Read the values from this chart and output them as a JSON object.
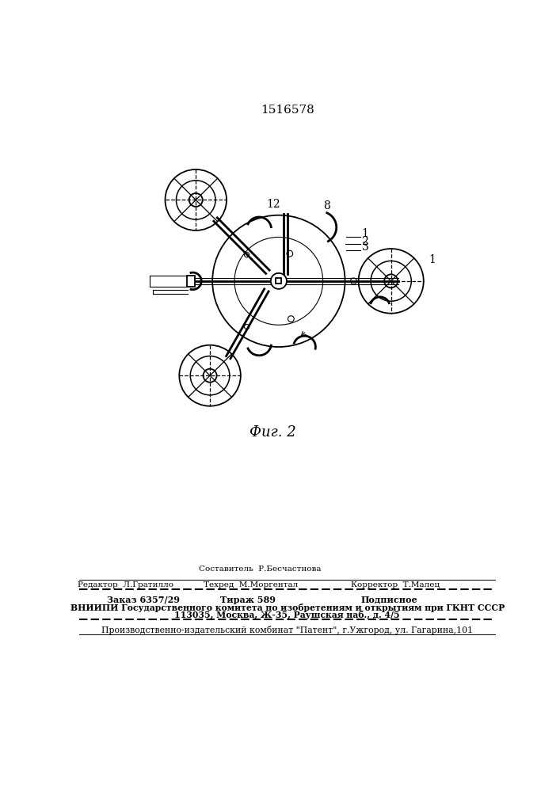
{
  "title": "1516578",
  "fig_label": "Фиг. 2",
  "background_color": "#ffffff",
  "line_color": "#000000",
  "footer_sestavitel": "Составитель  Р.Бесчастнова",
  "footer_redaktor": "Редактор  Л.Гратилло",
  "footer_tehred": "Техред  М.Моргентал",
  "footer_korrektor": "Корректор  Т.Малец",
  "footer_zakaz": "Заказ 6357/29",
  "footer_tirazh": "Тираж 589",
  "footer_podpisnoe": "Подписное",
  "footer_vniipи1": "ВНИИПИ Государственного комитета по изобретениям и открытиям при ГКНТ СССР",
  "footer_vniipи2": "113035, Москва, Ж-35, Раушская наб., д. 4/5",
  "footer_last": "Производственно-издательский комбинат \"Патент\", г.Ужгород, ул. Гагарина,101"
}
